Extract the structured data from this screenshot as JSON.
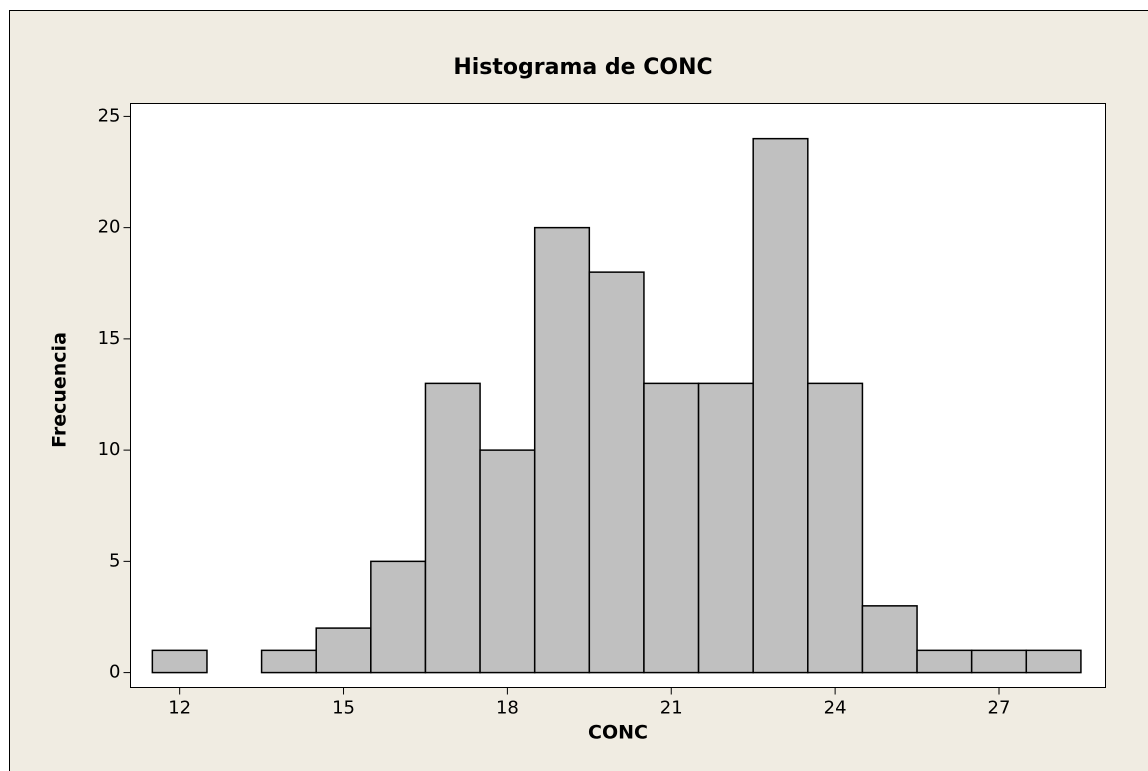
{
  "chart_data": {
    "type": "histogram",
    "title": "Histograma de CONC",
    "x_label": "CONC",
    "y_label": "Frecuencia",
    "bins": [
      11.5,
      12.5,
      13.5,
      14.5,
      15.5,
      16.5,
      17.5,
      18.5,
      19.5,
      20.5,
      21.5,
      22.5,
      23.5,
      24.5,
      25.5,
      26.5,
      27.5,
      28.5
    ],
    "values": [
      1,
      0,
      1,
      2,
      5,
      13,
      10,
      20,
      18,
      13,
      13,
      24,
      13,
      3,
      1,
      1,
      1
    ],
    "color": "#c0c0c0",
    "xlim": [
      11.1,
      28.95
    ],
    "xticks": [
      12,
      15,
      18,
      21,
      24,
      27
    ],
    "ylim": [
      -0.67,
      25.58
    ],
    "yticks": [
      0,
      5,
      10,
      15,
      20,
      25
    ]
  }
}
